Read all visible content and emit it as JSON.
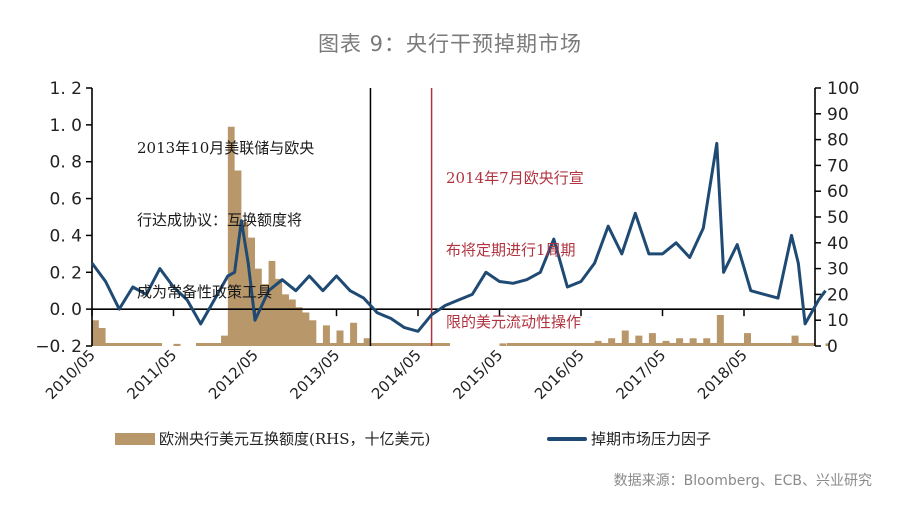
{
  "title": "图表 9：央行干预掉期市场",
  "annotations": {
    "fed_ecb_2013": [
      "2013年10月美联储与欧央",
      "行达成协议：互换额度将",
      "成为常备性政策工具"
    ],
    "ecb_2014": [
      "2014年7月欧央行宣",
      "布将定期进行1周期",
      "限的美元流动性操作"
    ]
  },
  "legend": {
    "bar_label": "欧洲央行美元互换额度(RHS，十亿美元)",
    "line_label": "掉期市场压力因子"
  },
  "source": "数据来源：Bloomberg、ECB、兴业研究",
  "colors": {
    "bar": "#B8976A",
    "line": "#1F4A73",
    "annotation_red": "#B0333F",
    "title_gray": "#7A7A7A"
  },
  "chart_data": {
    "type": "bar+line",
    "title": "图表 9：央行干预掉期市场",
    "x_tick_labels": [
      "2010/05",
      "2011/05",
      "2012/05",
      "2013/05",
      "2014/05",
      "2015/05",
      "2016/05",
      "2017/05",
      "2018/05"
    ],
    "left_axis": {
      "label": "掉期市场压力因子",
      "ylim": [
        -0.2,
        1.2
      ],
      "ticks": [
        "-0.2",
        "0.0",
        "0.2",
        "0.4",
        "0.6",
        "0.8",
        "1.0",
        "1.2"
      ]
    },
    "right_axis": {
      "label": "欧洲央行美元互换额度(RHS，十亿美元)",
      "ylim": [
        0,
        100
      ],
      "ticks": [
        "0",
        "10",
        "20",
        "30",
        "40",
        "50",
        "60",
        "70",
        "80",
        "90",
        "100"
      ]
    },
    "vertical_markers": [
      {
        "date": "2013/10",
        "color": "#000000",
        "label": "2013年10月美联储与欧央行达成协议：互换额度将成为常备性政策工具"
      },
      {
        "date": "2014/07",
        "color": "#B0333F",
        "label": "2014年7月欧央行宣布将定期进行1周期限的美元流动性操作"
      }
    ],
    "series": [
      {
        "name": "掉期市场压力因子",
        "type": "line",
        "axis": "left",
        "points": [
          [
            "2010/05",
            0.25
          ],
          [
            "2010/07",
            0.15
          ],
          [
            "2010/09",
            0.0
          ],
          [
            "2010/11",
            0.12
          ],
          [
            "2011/01",
            0.08
          ],
          [
            "2011/03",
            0.22
          ],
          [
            "2011/05",
            0.12
          ],
          [
            "2011/07",
            0.05
          ],
          [
            "2011/09",
            -0.08
          ],
          [
            "2011/11",
            0.05
          ],
          [
            "2012/01",
            0.18
          ],
          [
            "2012/02",
            0.2
          ],
          [
            "2012/03",
            0.48
          ],
          [
            "2012/04",
            0.25
          ],
          [
            "2012/05",
            -0.06
          ],
          [
            "2012/07",
            0.1
          ],
          [
            "2012/09",
            0.16
          ],
          [
            "2012/11",
            0.1
          ],
          [
            "2013/01",
            0.18
          ],
          [
            "2013/03",
            0.1
          ],
          [
            "2013/05",
            0.18
          ],
          [
            "2013/07",
            0.1
          ],
          [
            "2013/09",
            0.06
          ],
          [
            "2013/11",
            -0.02
          ],
          [
            "2014/01",
            -0.05
          ],
          [
            "2014/03",
            -0.1
          ],
          [
            "2014/05",
            -0.12
          ],
          [
            "2014/07",
            -0.03
          ],
          [
            "2014/09",
            0.02
          ],
          [
            "2014/11",
            0.05
          ],
          [
            "2015/01",
            0.08
          ],
          [
            "2015/03",
            0.2
          ],
          [
            "2015/05",
            0.15
          ],
          [
            "2015/07",
            0.14
          ],
          [
            "2015/09",
            0.16
          ],
          [
            "2015/11",
            0.2
          ],
          [
            "2016/01",
            0.38
          ],
          [
            "2016/03",
            0.12
          ],
          [
            "2016/05",
            0.15
          ],
          [
            "2016/07",
            0.25
          ],
          [
            "2016/09",
            0.45
          ],
          [
            "2016/11",
            0.3
          ],
          [
            "2017/01",
            0.52
          ],
          [
            "2017/03",
            0.3
          ],
          [
            "2017/05",
            0.3
          ],
          [
            "2017/07",
            0.36
          ],
          [
            "2017/09",
            0.28
          ],
          [
            "2017/11",
            0.44
          ],
          [
            "2018/01",
            0.9
          ],
          [
            "2018/02",
            0.2
          ],
          [
            "2018/04",
            0.35
          ],
          [
            "2018/06",
            0.1
          ],
          [
            "2018/08",
            0.08
          ],
          [
            "2018/10",
            0.06
          ],
          [
            "2018/12",
            0.4
          ],
          [
            "2019/01",
            0.25
          ],
          [
            "2019/02",
            -0.08
          ],
          [
            "2019/04",
            0.05
          ],
          [
            "2019/05",
            0.1
          ]
        ]
      },
      {
        "name": "欧洲央行美元互换额度(RHS，十亿美元)",
        "type": "bar",
        "axis": "right",
        "points": [
          [
            "2010/05",
            10
          ],
          [
            "2010/06",
            7
          ],
          [
            "2010/07",
            0.5
          ],
          [
            "2011/05",
            0.5
          ],
          [
            "2011/10",
            1
          ],
          [
            "2011/12",
            4
          ],
          [
            "2012/01",
            85
          ],
          [
            "2012/02",
            68
          ],
          [
            "2012/03",
            48
          ],
          [
            "2012/04",
            42
          ],
          [
            "2012/05",
            30
          ],
          [
            "2012/06",
            24
          ],
          [
            "2012/07",
            33
          ],
          [
            "2012/08",
            26
          ],
          [
            "2012/09",
            20
          ],
          [
            "2012/10",
            18
          ],
          [
            "2012/11",
            15
          ],
          [
            "2012/12",
            13
          ],
          [
            "2013/01",
            10
          ],
          [
            "2013/03",
            8
          ],
          [
            "2013/05",
            6
          ],
          [
            "2013/07",
            9
          ],
          [
            "2013/09",
            3
          ],
          [
            "2013/11",
            1
          ],
          [
            "2014/05",
            1
          ],
          [
            "2015/05",
            1
          ],
          [
            "2016/05",
            1
          ],
          [
            "2016/07",
            2
          ],
          [
            "2016/09",
            3
          ],
          [
            "2016/11",
            6
          ],
          [
            "2017/01",
            4
          ],
          [
            "2017/03",
            5
          ],
          [
            "2017/05",
            2
          ],
          [
            "2017/07",
            3
          ],
          [
            "2017/09",
            3
          ],
          [
            "2017/11",
            3
          ],
          [
            "2018/01",
            12
          ],
          [
            "2018/05",
            5
          ],
          [
            "2018/12",
            4
          ],
          [
            "2019/05",
            1
          ]
        ]
      }
    ]
  }
}
